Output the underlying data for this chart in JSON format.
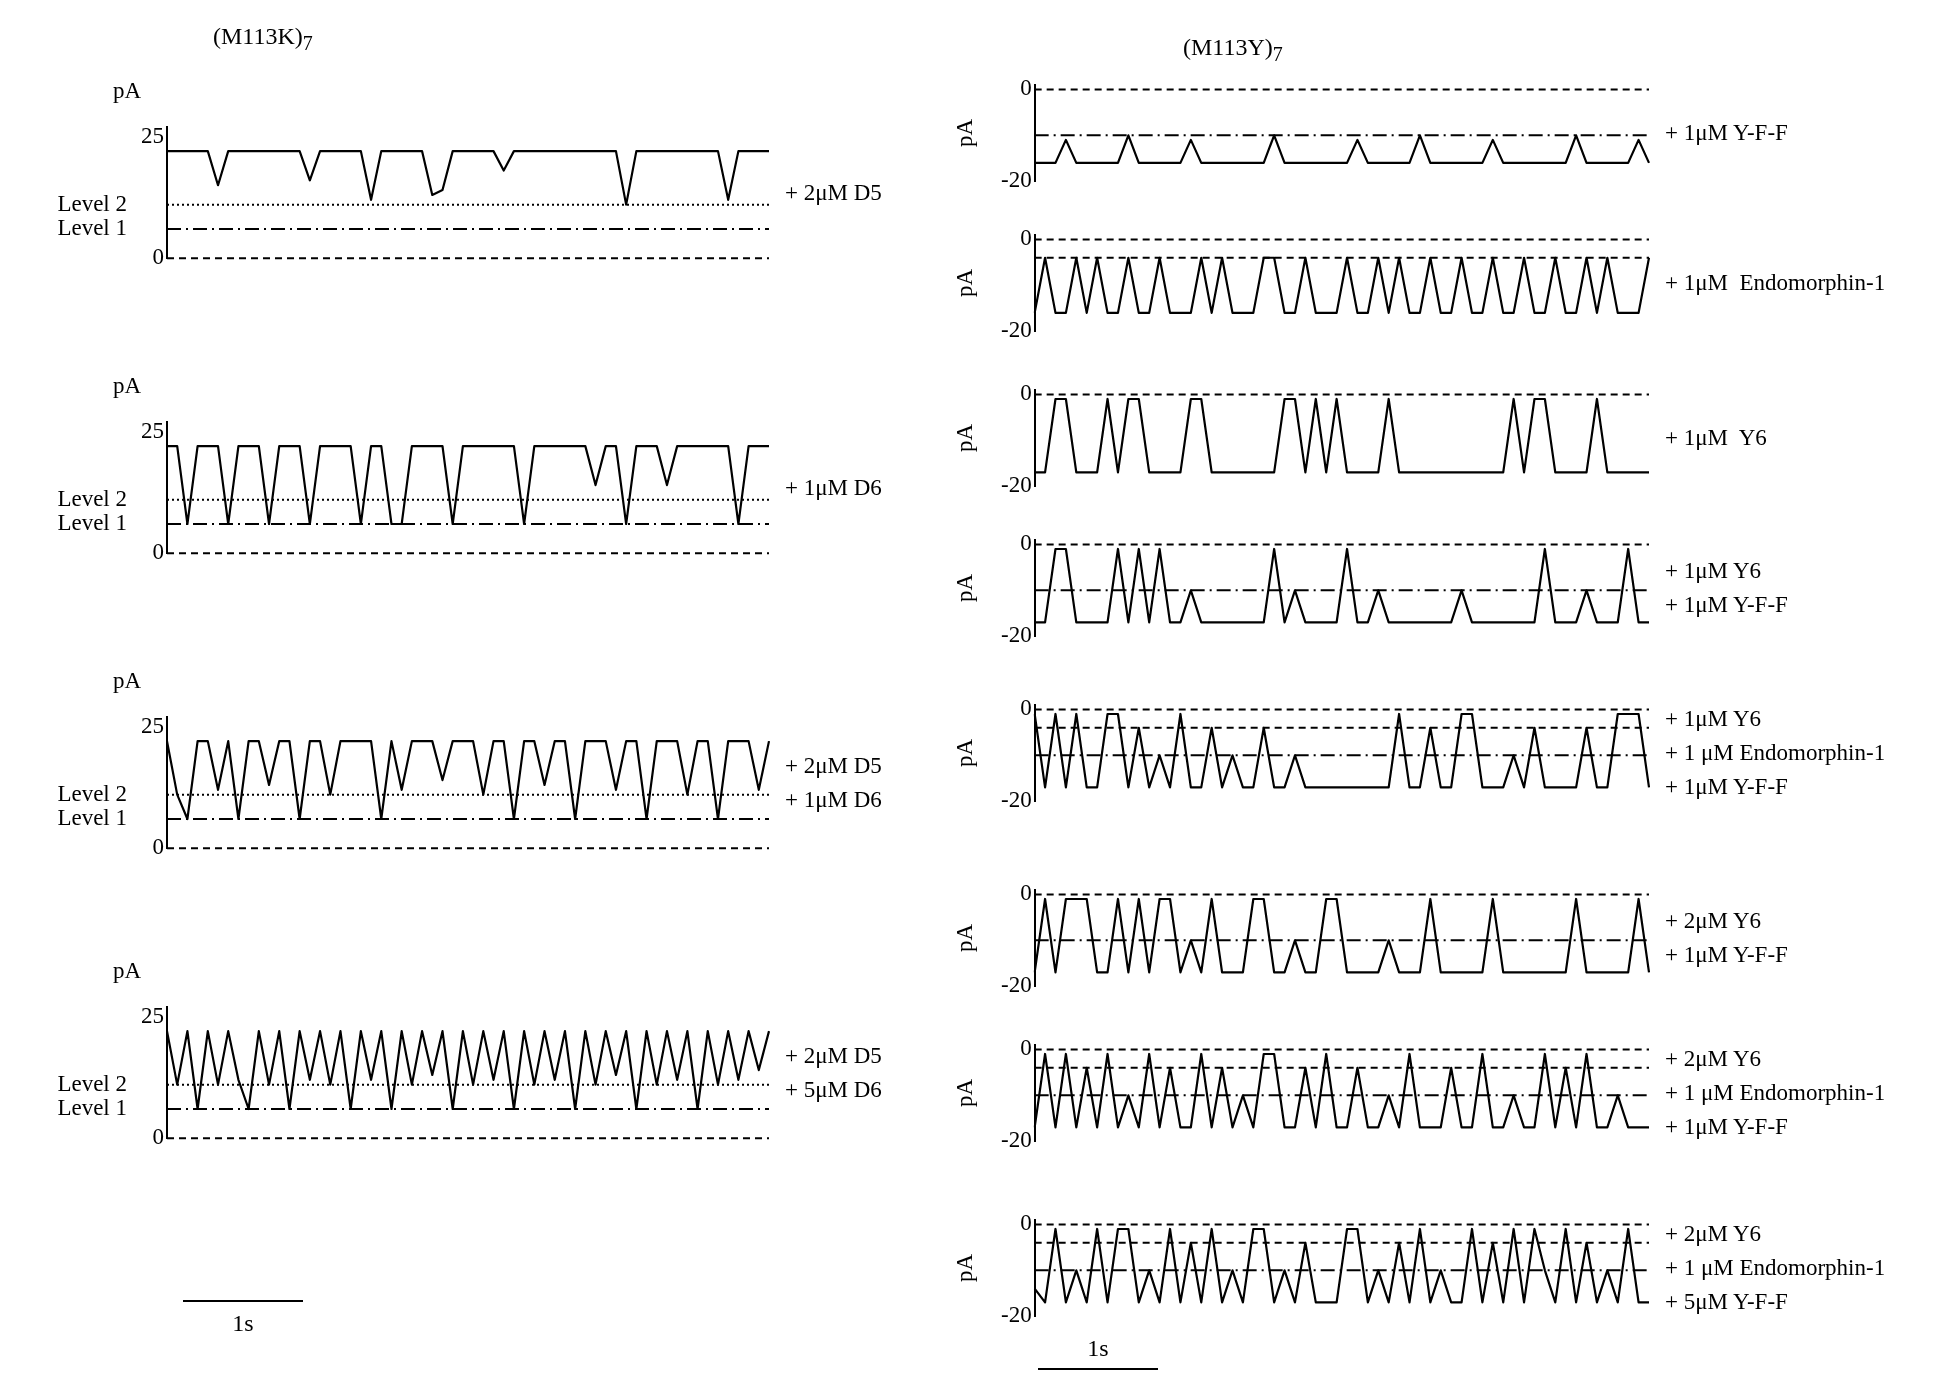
{
  "chart_data": [
    {
      "type": "line",
      "title": "(M113K)$_{7}$",
      "ylabel": "pA",
      "ylim": [
        0,
        27
      ],
      "yticks": [
        0,
        25
      ],
      "marker": "none",
      "categories": [
        null,
        null,
        null,
        null,
        null,
        null,
        null,
        null,
        null,
        null,
        null,
        null,
        null,
        null,
        null,
        null,
        null,
        null,
        null,
        null,
        null,
        null,
        null,
        null,
        null,
        null,
        null,
        null,
        null,
        null,
        null,
        null,
        null,
        null,
        null,
        null,
        null,
        null,
        null,
        null,
        null,
        null,
        null,
        null,
        null,
        null,
        null,
        null,
        null,
        null,
        null,
        null,
        null,
        null,
        null,
        null,
        null,
        null,
        null,
        null
      ],
      "series": [
        {
          "color": "#000000",
          "values": [
            22,
            22,
            22,
            22,
            22,
            15,
            22,
            22,
            22,
            22,
            22,
            22,
            22,
            22,
            16,
            22,
            22,
            22,
            22,
            22,
            12,
            22,
            22,
            22,
            22,
            22,
            13,
            14,
            22,
            22,
            22,
            22,
            22,
            18,
            22,
            22,
            22,
            22,
            22,
            22,
            22,
            22,
            22,
            22,
            22,
            11,
            22,
            22,
            22,
            22,
            22,
            22,
            22,
            22,
            22,
            12,
            22,
            22,
            22,
            22
          ]
        }
      ],
      "ref_lines": [
        {
          "axis": "y",
          "value": 11,
          "label": "Level 2",
          "line_style": "dotted"
        },
        {
          "axis": "y",
          "value": 6,
          "label": "Level 1",
          "line_style": "dashdot"
        },
        {
          "axis": "y",
          "value": 0,
          "line_style": "dashed"
        }
      ],
      "annotations": [
        "+ 2μM D5"
      ]
    },
    {
      "type": "line",
      "ylabel": "pA",
      "ylim": [
        0,
        27
      ],
      "yticks": [
        0,
        25
      ],
      "marker": "none",
      "categories": [
        null,
        null,
        null,
        null,
        null,
        null,
        null,
        null,
        null,
        null,
        null,
        null,
        null,
        null,
        null,
        null,
        null,
        null,
        null,
        null,
        null,
        null,
        null,
        null,
        null,
        null,
        null,
        null,
        null,
        null,
        null,
        null,
        null,
        null,
        null,
        null,
        null,
        null,
        null,
        null,
        null,
        null,
        null,
        null,
        null,
        null,
        null,
        null,
        null,
        null,
        null,
        null,
        null,
        null,
        null,
        null,
        null,
        null,
        null,
        null
      ],
      "series": [
        {
          "color": "#000000",
          "values": [
            22,
            22,
            6,
            22,
            22,
            22,
            6,
            22,
            22,
            22,
            6,
            22,
            22,
            22,
            6,
            22,
            22,
            22,
            22,
            6,
            22,
            22,
            6,
            6,
            22,
            22,
            22,
            22,
            6,
            22,
            22,
            22,
            22,
            22,
            22,
            6,
            22,
            22,
            22,
            22,
            22,
            22,
            14,
            22,
            22,
            6,
            22,
            22,
            22,
            14,
            22,
            22,
            22,
            22,
            22,
            22,
            6,
            22,
            22,
            22
          ]
        }
      ],
      "ref_lines": [
        {
          "axis": "y",
          "value": 11,
          "label": "Level 2",
          "line_style": "dotted"
        },
        {
          "axis": "y",
          "value": 6,
          "label": "Level 1",
          "line_style": "dashdot"
        },
        {
          "axis": "y",
          "value": 0,
          "line_style": "dashed"
        }
      ],
      "annotations": [
        "+ 1μM D6"
      ]
    },
    {
      "type": "line",
      "ylabel": "pA",
      "ylim": [
        0,
        27
      ],
      "yticks": [
        0,
        25
      ],
      "marker": "none",
      "categories": [
        null,
        null,
        null,
        null,
        null,
        null,
        null,
        null,
        null,
        null,
        null,
        null,
        null,
        null,
        null,
        null,
        null,
        null,
        null,
        null,
        null,
        null,
        null,
        null,
        null,
        null,
        null,
        null,
        null,
        null,
        null,
        null,
        null,
        null,
        null,
        null,
        null,
        null,
        null,
        null,
        null,
        null,
        null,
        null,
        null,
        null,
        null,
        null,
        null,
        null,
        null,
        null,
        null,
        null,
        null,
        null,
        null,
        null,
        null,
        null
      ],
      "series": [
        {
          "color": "#000000",
          "values": [
            22,
            11,
            6,
            22,
            22,
            12,
            22,
            6,
            22,
            22,
            13,
            22,
            22,
            6,
            22,
            22,
            11,
            22,
            22,
            22,
            22,
            6,
            22,
            12,
            22,
            22,
            22,
            14,
            22,
            22,
            22,
            11,
            22,
            22,
            6,
            22,
            22,
            13,
            22,
            22,
            6,
            22,
            22,
            22,
            12,
            22,
            22,
            6,
            22,
            22,
            22,
            11,
            22,
            22,
            6,
            22,
            22,
            22,
            12,
            22
          ]
        }
      ],
      "ref_lines": [
        {
          "axis": "y",
          "value": 11,
          "label": "Level 2",
          "line_style": "dotted"
        },
        {
          "axis": "y",
          "value": 6,
          "label": "Level 1",
          "line_style": "dashdot"
        },
        {
          "axis": "y",
          "value": 0,
          "line_style": "dashed"
        }
      ],
      "annotations": [
        "+ 2μM D5",
        "+ 1μM D6"
      ]
    },
    {
      "type": "line",
      "ylabel": "pA",
      "xlabel": "1s",
      "ylim": [
        0,
        27
      ],
      "yticks": [
        0,
        25
      ],
      "marker": "none",
      "categories": [
        null,
        null,
        null,
        null,
        null,
        null,
        null,
        null,
        null,
        null,
        null,
        null,
        null,
        null,
        null,
        null,
        null,
        null,
        null,
        null,
        null,
        null,
        null,
        null,
        null,
        null,
        null,
        null,
        null,
        null,
        null,
        null,
        null,
        null,
        null,
        null,
        null,
        null,
        null,
        null,
        null,
        null,
        null,
        null,
        null,
        null,
        null,
        null,
        null,
        null,
        null,
        null,
        null,
        null,
        null,
        null,
        null,
        null,
        null,
        null
      ],
      "series": [
        {
          "color": "#000000",
          "values": [
            22,
            11,
            22,
            6,
            22,
            11,
            22,
            12,
            6,
            22,
            11,
            22,
            6,
            22,
            12,
            22,
            11,
            22,
            6,
            22,
            12,
            22,
            6,
            22,
            11,
            22,
            13,
            22,
            6,
            22,
            11,
            22,
            12,
            22,
            6,
            22,
            11,
            22,
            12,
            22,
            6,
            22,
            11,
            22,
            13,
            22,
            6,
            22,
            11,
            22,
            12,
            22,
            6,
            22,
            11,
            22,
            12,
            22,
            14,
            22
          ]
        }
      ],
      "ref_lines": [
        {
          "axis": "y",
          "value": 11,
          "label": "Level 2",
          "line_style": "dotted"
        },
        {
          "axis": "y",
          "value": 6,
          "label": "Level 1",
          "line_style": "dashdot"
        },
        {
          "axis": "y",
          "value": 0,
          "line_style": "dashed"
        }
      ],
      "annotations": [
        "+ 2μM D5",
        "+ 5μM D6"
      ]
    },
    {
      "type": "line",
      "title": "(M113Y)$_{7}$",
      "ylabel": "pA",
      "ylim": [
        -20,
        1
      ],
      "yticks": [
        -20,
        0
      ],
      "marker": "none",
      "categories": [
        null,
        null,
        null,
        null,
        null,
        null,
        null,
        null,
        null,
        null,
        null,
        null,
        null,
        null,
        null,
        null,
        null,
        null,
        null,
        null,
        null,
        null,
        null,
        null,
        null,
        null,
        null,
        null,
        null,
        null,
        null,
        null,
        null,
        null,
        null,
        null,
        null,
        null,
        null,
        null,
        null,
        null,
        null,
        null,
        null,
        null,
        null,
        null,
        null,
        null,
        null,
        null,
        null,
        null,
        null,
        null,
        null,
        null,
        null,
        null
      ],
      "series": [
        {
          "color": "#000000",
          "values": [
            -16,
            -16,
            -16,
            -11,
            -16,
            -16,
            -16,
            -16,
            -16,
            -10,
            -16,
            -16,
            -16,
            -16,
            -16,
            -11,
            -16,
            -16,
            -16,
            -16,
            -16,
            -16,
            -16,
            -10,
            -16,
            -16,
            -16,
            -16,
            -16,
            -16,
            -16,
            -11,
            -16,
            -16,
            -16,
            -16,
            -16,
            -10,
            -16,
            -16,
            -16,
            -16,
            -16,
            -16,
            -11,
            -16,
            -16,
            -16,
            -16,
            -16,
            -16,
            -16,
            -10,
            -16,
            -16,
            -16,
            -16,
            -16,
            -11,
            -16
          ]
        }
      ],
      "ref_lines": [
        {
          "axis": "y",
          "value": 0,
          "line_style": "dashed"
        },
        {
          "axis": "y",
          "value": -10,
          "line_style": "dashdot"
        }
      ],
      "annotations": [
        "+ 1μM Y-F-F"
      ]
    },
    {
      "type": "line",
      "ylabel": "pA",
      "ylim": [
        -20,
        1
      ],
      "yticks": [
        -20,
        0
      ],
      "marker": "none",
      "categories": [
        null,
        null,
        null,
        null,
        null,
        null,
        null,
        null,
        null,
        null,
        null,
        null,
        null,
        null,
        null,
        null,
        null,
        null,
        null,
        null,
        null,
        null,
        null,
        null,
        null,
        null,
        null,
        null,
        null,
        null,
        null,
        null,
        null,
        null,
        null,
        null,
        null,
        null,
        null,
        null,
        null,
        null,
        null,
        null,
        null,
        null,
        null,
        null,
        null,
        null,
        null,
        null,
        null,
        null,
        null,
        null,
        null,
        null,
        null,
        null
      ],
      "series": [
        {
          "color": "#000000",
          "values": [
            -16,
            -4,
            -16,
            -16,
            -4,
            -16,
            -4,
            -16,
            -16,
            -4,
            -16,
            -16,
            -4,
            -16,
            -16,
            -16,
            -4,
            -16,
            -4,
            -16,
            -16,
            -16,
            -4,
            -4,
            -16,
            -16,
            -4,
            -16,
            -16,
            -16,
            -4,
            -16,
            -16,
            -4,
            -16,
            -4,
            -16,
            -16,
            -4,
            -16,
            -16,
            -4,
            -16,
            -16,
            -4,
            -16,
            -16,
            -4,
            -16,
            -16,
            -4,
            -16,
            -16,
            -4,
            -16,
            -4,
            -16,
            -16,
            -16,
            -4
          ]
        }
      ],
      "ref_lines": [
        {
          "axis": "y",
          "value": 0,
          "line_style": "dashed"
        },
        {
          "axis": "y",
          "value": -4,
          "line_style": "dashed"
        }
      ],
      "annotations": [
        "+ 1μM  Endomorphin-1"
      ]
    },
    {
      "type": "line",
      "ylabel": "pA",
      "ylim": [
        -20,
        1
      ],
      "yticks": [
        -20,
        0
      ],
      "marker": "none",
      "categories": [
        null,
        null,
        null,
        null,
        null,
        null,
        null,
        null,
        null,
        null,
        null,
        null,
        null,
        null,
        null,
        null,
        null,
        null,
        null,
        null,
        null,
        null,
        null,
        null,
        null,
        null,
        null,
        null,
        null,
        null,
        null,
        null,
        null,
        null,
        null,
        null,
        null,
        null,
        null,
        null,
        null,
        null,
        null,
        null,
        null,
        null,
        null,
        null,
        null,
        null,
        null,
        null,
        null,
        null,
        null,
        null,
        null,
        null,
        null,
        null
      ],
      "series": [
        {
          "color": "#000000",
          "values": [
            -17,
            -17,
            -1,
            -1,
            -17,
            -17,
            -17,
            -1,
            -17,
            -1,
            -1,
            -17,
            -17,
            -17,
            -17,
            -1,
            -1,
            -17,
            -17,
            -17,
            -17,
            -17,
            -17,
            -17,
            -1,
            -1,
            -17,
            -1,
            -17,
            -1,
            -17,
            -17,
            -17,
            -17,
            -1,
            -17,
            -17,
            -17,
            -17,
            -17,
            -17,
            -17,
            -17,
            -17,
            -17,
            -17,
            -1,
            -17,
            -1,
            -1,
            -17,
            -17,
            -17,
            -17,
            -1,
            -17,
            -17,
            -17,
            -17,
            -17
          ]
        }
      ],
      "ref_lines": [
        {
          "axis": "y",
          "value": 0,
          "line_style": "dashed"
        }
      ],
      "annotations": [
        "+ 1μM  Y6"
      ]
    },
    {
      "type": "line",
      "ylabel": "pA",
      "ylim": [
        -20,
        1
      ],
      "yticks": [
        -20,
        0
      ],
      "marker": "none",
      "categories": [
        null,
        null,
        null,
        null,
        null,
        null,
        null,
        null,
        null,
        null,
        null,
        null,
        null,
        null,
        null,
        null,
        null,
        null,
        null,
        null,
        null,
        null,
        null,
        null,
        null,
        null,
        null,
        null,
        null,
        null,
        null,
        null,
        null,
        null,
        null,
        null,
        null,
        null,
        null,
        null,
        null,
        null,
        null,
        null,
        null,
        null,
        null,
        null,
        null,
        null,
        null,
        null,
        null,
        null,
        null,
        null,
        null,
        null,
        null,
        null
      ],
      "series": [
        {
          "color": "#000000",
          "values": [
            -17,
            -17,
            -1,
            -1,
            -17,
            -17,
            -17,
            -17,
            -1,
            -17,
            -1,
            -17,
            -1,
            -17,
            -17,
            -10,
            -17,
            -17,
            -17,
            -17,
            -17,
            -17,
            -17,
            -1,
            -17,
            -10,
            -17,
            -17,
            -17,
            -17,
            -1,
            -17,
            -17,
            -10,
            -17,
            -17,
            -17,
            -17,
            -17,
            -17,
            -17,
            -10,
            -17,
            -17,
            -17,
            -17,
            -17,
            -17,
            -17,
            -1,
            -17,
            -17,
            -17,
            -10,
            -17,
            -17,
            -17,
            -1,
            -17,
            -17
          ]
        }
      ],
      "ref_lines": [
        {
          "axis": "y",
          "value": 0,
          "line_style": "dashed"
        },
        {
          "axis": "y",
          "value": -10,
          "line_style": "dashdot"
        }
      ],
      "annotations": [
        "+ 1μM Y6",
        "+ 1μM Y-F-F"
      ]
    },
    {
      "type": "line",
      "ylabel": "pA",
      "ylim": [
        -20,
        1
      ],
      "yticks": [
        -20,
        0
      ],
      "marker": "none",
      "categories": [
        null,
        null,
        null,
        null,
        null,
        null,
        null,
        null,
        null,
        null,
        null,
        null,
        null,
        null,
        null,
        null,
        null,
        null,
        null,
        null,
        null,
        null,
        null,
        null,
        null,
        null,
        null,
        null,
        null,
        null,
        null,
        null,
        null,
        null,
        null,
        null,
        null,
        null,
        null,
        null,
        null,
        null,
        null,
        null,
        null,
        null,
        null,
        null,
        null,
        null,
        null,
        null,
        null,
        null,
        null,
        null,
        null,
        null,
        null,
        null
      ],
      "series": [
        {
          "color": "#000000",
          "values": [
            -1,
            -17,
            -1,
            -17,
            -1,
            -17,
            -17,
            -1,
            -1,
            -17,
            -4,
            -17,
            -10,
            -17,
            -1,
            -17,
            -17,
            -4,
            -17,
            -10,
            -17,
            -17,
            -4,
            -17,
            -17,
            -10,
            -17,
            -17,
            -17,
            -17,
            -17,
            -17,
            -17,
            -17,
            -17,
            -1,
            -17,
            -17,
            -4,
            -17,
            -17,
            -1,
            -1,
            -17,
            -17,
            -17,
            -10,
            -17,
            -4,
            -17,
            -17,
            -17,
            -17,
            -4,
            -17,
            -17,
            -1,
            -1,
            -1,
            -17
          ]
        }
      ],
      "ref_lines": [
        {
          "axis": "y",
          "value": 0,
          "line_style": "dashed"
        },
        {
          "axis": "y",
          "value": -4,
          "line_style": "dashed"
        },
        {
          "axis": "y",
          "value": -10,
          "line_style": "dashdot"
        }
      ],
      "annotations": [
        "+ 1μM Y6",
        "+ 1 μM Endomorphin-1",
        "+ 1μM Y-F-F"
      ]
    },
    {
      "type": "line",
      "ylabel": "pA",
      "ylim": [
        -20,
        1
      ],
      "yticks": [
        -20,
        0
      ],
      "marker": "none",
      "categories": [
        null,
        null,
        null,
        null,
        null,
        null,
        null,
        null,
        null,
        null,
        null,
        null,
        null,
        null,
        null,
        null,
        null,
        null,
        null,
        null,
        null,
        null,
        null,
        null,
        null,
        null,
        null,
        null,
        null,
        null,
        null,
        null,
        null,
        null,
        null,
        null,
        null,
        null,
        null,
        null,
        null,
        null,
        null,
        null,
        null,
        null,
        null,
        null,
        null,
        null,
        null,
        null,
        null,
        null,
        null,
        null,
        null,
        null,
        null,
        null
      ],
      "series": [
        {
          "color": "#000000",
          "values": [
            -17,
            -1,
            -17,
            -1,
            -1,
            -1,
            -17,
            -17,
            -1,
            -17,
            -1,
            -17,
            -1,
            -1,
            -17,
            -10,
            -17,
            -1,
            -17,
            -17,
            -17,
            -1,
            -1,
            -17,
            -17,
            -10,
            -17,
            -17,
            -1,
            -1,
            -17,
            -17,
            -17,
            -17,
            -10,
            -17,
            -17,
            -17,
            -1,
            -17,
            -17,
            -17,
            -17,
            -17,
            -1,
            -17,
            -17,
            -17,
            -17,
            -17,
            -17,
            -17,
            -1,
            -17,
            -17,
            -17,
            -17,
            -17,
            -1,
            -17
          ]
        }
      ],
      "ref_lines": [
        {
          "axis": "y",
          "value": 0,
          "line_style": "dashed"
        },
        {
          "axis": "y",
          "value": -10,
          "line_style": "dashdot"
        }
      ],
      "annotations": [
        "+ 2μM Y6",
        "+ 1μM Y-F-F"
      ]
    },
    {
      "type": "line",
      "ylabel": "pA",
      "ylim": [
        -20,
        1
      ],
      "yticks": [
        -20,
        0
      ],
      "marker": "none",
      "categories": [
        null,
        null,
        null,
        null,
        null,
        null,
        null,
        null,
        null,
        null,
        null,
        null,
        null,
        null,
        null,
        null,
        null,
        null,
        null,
        null,
        null,
        null,
        null,
        null,
        null,
        null,
        null,
        null,
        null,
        null,
        null,
        null,
        null,
        null,
        null,
        null,
        null,
        null,
        null,
        null,
        null,
        null,
        null,
        null,
        null,
        null,
        null,
        null,
        null,
        null,
        null,
        null,
        null,
        null,
        null,
        null,
        null,
        null,
        null,
        null
      ],
      "series": [
        {
          "color": "#000000",
          "values": [
            -17,
            -1,
            -17,
            -1,
            -17,
            -4,
            -17,
            -1,
            -17,
            -10,
            -17,
            -1,
            -17,
            -4,
            -17,
            -17,
            -1,
            -17,
            -4,
            -17,
            -10,
            -17,
            -1,
            -1,
            -17,
            -17,
            -4,
            -17,
            -1,
            -17,
            -17,
            -4,
            -17,
            -17,
            -10,
            -17,
            -1,
            -17,
            -17,
            -17,
            -4,
            -17,
            -17,
            -1,
            -17,
            -17,
            -10,
            -17,
            -17,
            -1,
            -17,
            -4,
            -17,
            -1,
            -17,
            -17,
            -10,
            -17,
            -17,
            -17
          ]
        }
      ],
      "ref_lines": [
        {
          "axis": "y",
          "value": 0,
          "line_style": "dashed"
        },
        {
          "axis": "y",
          "value": -4,
          "line_style": "dashed"
        },
        {
          "axis": "y",
          "value": -10,
          "line_style": "dashdot"
        }
      ],
      "annotations": [
        "+ 2μM Y6",
        "+ 1 μM Endomorphin-1",
        "+ 1μM Y-F-F"
      ]
    },
    {
      "type": "line",
      "ylabel": "pA",
      "xlabel": "1s",
      "ylim": [
        -20,
        1
      ],
      "yticks": [
        -20,
        0
      ],
      "marker": "none",
      "categories": [
        null,
        null,
        null,
        null,
        null,
        null,
        null,
        null,
        null,
        null,
        null,
        null,
        null,
        null,
        null,
        null,
        null,
        null,
        null,
        null,
        null,
        null,
        null,
        null,
        null,
        null,
        null,
        null,
        null,
        null,
        null,
        null,
        null,
        null,
        null,
        null,
        null,
        null,
        null,
        null,
        null,
        null,
        null,
        null,
        null,
        null,
        null,
        null,
        null,
        null,
        null,
        null,
        null,
        null,
        null,
        null,
        null,
        null,
        null,
        null
      ],
      "series": [
        {
          "color": "#000000",
          "values": [
            -14,
            -17,
            -1,
            -17,
            -10,
            -17,
            -1,
            -17,
            -1,
            -1,
            -17,
            -10,
            -17,
            -1,
            -17,
            -4,
            -17,
            -1,
            -17,
            -10,
            -17,
            -1,
            -1,
            -17,
            -10,
            -17,
            -4,
            -17,
            -17,
            -17,
            -1,
            -1,
            -17,
            -10,
            -17,
            -4,
            -17,
            -1,
            -17,
            -10,
            -17,
            -17,
            -1,
            -17,
            -4,
            -17,
            -1,
            -17,
            -1,
            -10,
            -17,
            -1,
            -17,
            -4,
            -17,
            -10,
            -17,
            -1,
            -17,
            -17
          ]
        }
      ],
      "ref_lines": [
        {
          "axis": "y",
          "value": 0,
          "line_style": "dashed"
        },
        {
          "axis": "y",
          "value": -4,
          "line_style": "dashed"
        },
        {
          "axis": "y",
          "value": -10,
          "line_style": "dashdot"
        }
      ],
      "annotations": [
        "+ 2μM Y6",
        "+ 1 μM Endomorphin-1",
        "+ 5μM Y-F-F"
      ]
    }
  ]
}
